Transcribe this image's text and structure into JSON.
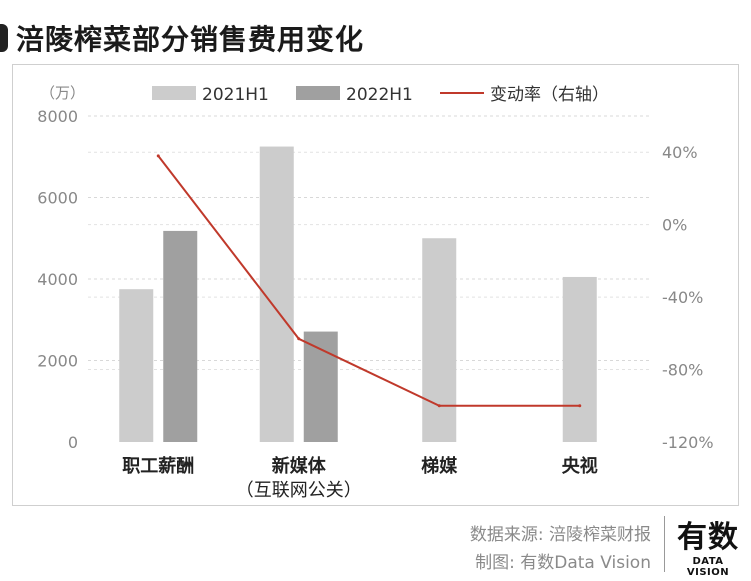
{
  "title": "涪陵榨菜部分销售费用变化",
  "chart_data": {
    "type": "bar",
    "categories": [
      [
        "职工薪酬"
      ],
      [
        "新媒体",
        "（互联网公关）"
      ],
      [
        "梯媒"
      ],
      [
        "央视"
      ]
    ],
    "series": [
      {
        "name": "2021H1",
        "values": [
          3750,
          7250,
          5000,
          4050
        ],
        "color": "#cccccc"
      },
      {
        "name": "2022H1",
        "values": [
          5180,
          2710,
          null,
          null
        ],
        "color": "#a0a0a0"
      }
    ],
    "line_series": {
      "name": "变动率（右轴）",
      "values": [
        38,
        -63,
        -100,
        -100
      ],
      "color": "#c0392b"
    },
    "y_unit": "（万）",
    "ylim": [
      0,
      8000
    ],
    "yticks": [
      0,
      2000,
      4000,
      6000,
      8000
    ],
    "y2lim": [
      -120,
      60
    ],
    "y2ticks": [
      40,
      0,
      -40,
      -80,
      -120
    ],
    "y2_tick_suffix": "%",
    "grid": "dashed-horizontal",
    "legend": "top"
  },
  "footer": {
    "source": "数据来源: 涪陵榨菜财报",
    "credit": "制图: 有数Data Vision"
  },
  "logo": {
    "main": "有数",
    "sub": "DATA VISION"
  }
}
